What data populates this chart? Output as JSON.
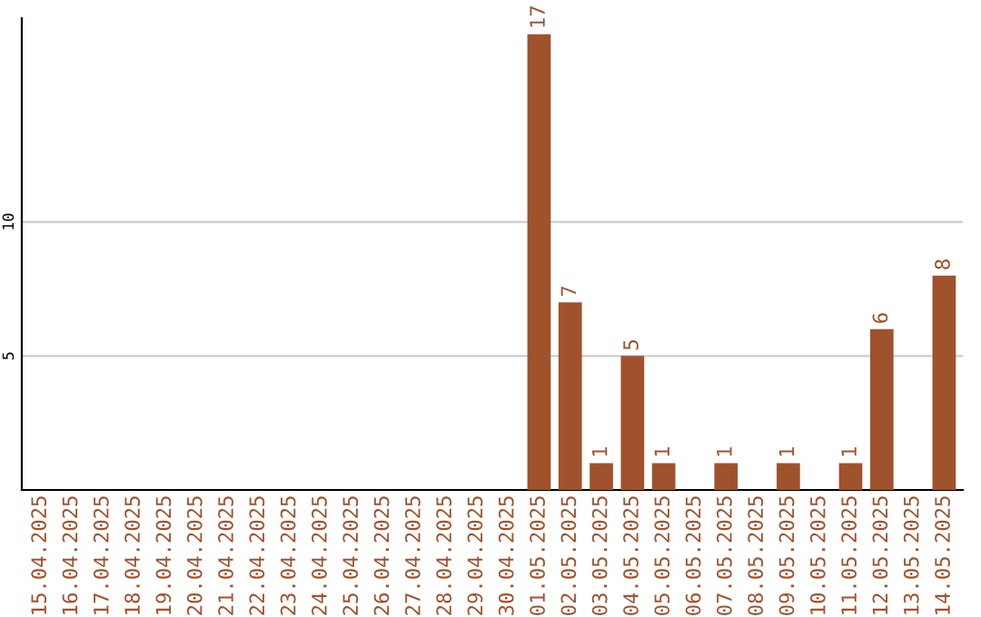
{
  "chart_data": {
    "type": "bar",
    "categories": [
      "15.04.2025",
      "16.04.2025",
      "17.04.2025",
      "18.04.2025",
      "19.04.2025",
      "20.04.2025",
      "21.04.2025",
      "22.04.2025",
      "23.04.2025",
      "24.04.2025",
      "25.04.2025",
      "26.04.2025",
      "27.04.2025",
      "28.04.2025",
      "29.04.2025",
      "30.04.2025",
      "01.05.2025",
      "02.05.2025",
      "03.05.2025",
      "04.05.2025",
      "05.05.2025",
      "06.05.2025",
      "07.05.2025",
      "08.05.2025",
      "09.05.2025",
      "10.05.2025",
      "11.05.2025",
      "12.05.2025",
      "13.05.2025",
      "14.05.2025"
    ],
    "values": [
      0,
      0,
      0,
      0,
      0,
      0,
      0,
      0,
      0,
      0,
      0,
      0,
      0,
      0,
      0,
      0,
      17,
      7,
      1,
      5,
      1,
      0,
      1,
      0,
      1,
      0,
      1,
      6,
      0,
      8
    ],
    "value_labels": [
      null,
      null,
      null,
      null,
      null,
      null,
      null,
      null,
      null,
      null,
      null,
      null,
      null,
      null,
      null,
      null,
      "17",
      "7",
      "1",
      "5",
      "1",
      null,
      "1",
      null,
      "1",
      null,
      "1",
      "6",
      null,
      "8"
    ],
    "color": "#a0522d",
    "ylim": [
      0,
      17.6
    ],
    "yticks": [
      5,
      10
    ],
    "grid": "y",
    "legend": false
  }
}
